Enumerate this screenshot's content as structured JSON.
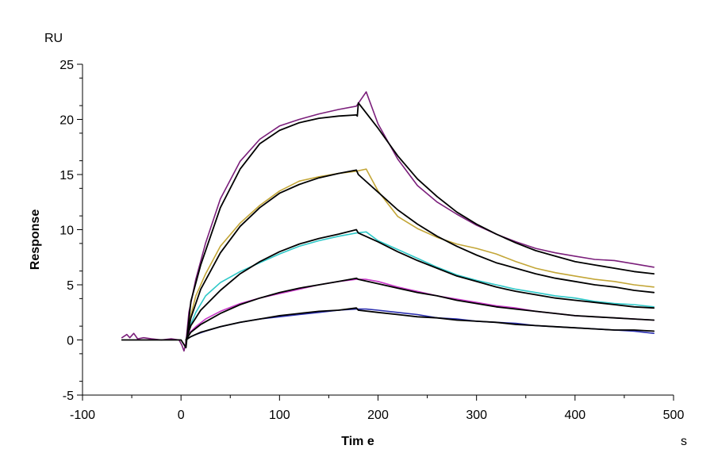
{
  "chart_data": {
    "type": "line",
    "title": "",
    "xlabel": "Tim e",
    "ylabel": "Response",
    "x_unit": "s",
    "y_unit": "RU",
    "xlim": [
      -100,
      500
    ],
    "ylim": [
      -5,
      25
    ],
    "x_ticks": [
      -100,
      0,
      100,
      200,
      300,
      400,
      500
    ],
    "x_tick_labels": [
      "-100",
      "0",
      "100",
      "200",
      "300",
      "400",
      "500"
    ],
    "y_ticks": [
      -5,
      0,
      5,
      10,
      15,
      20,
      25
    ],
    "y_tick_labels": [
      "-5",
      "0",
      "5",
      "10",
      "15",
      "20",
      "25"
    ],
    "grid": false,
    "legend": "none",
    "series": [
      {
        "color": "#7b1f7b",
        "style": "measured",
        "points": [
          [
            -60,
            0.2
          ],
          [
            -55,
            0.5
          ],
          [
            -52,
            0.2
          ],
          [
            -48,
            0.6
          ],
          [
            -44,
            0.1
          ],
          [
            -38,
            0.2
          ],
          [
            -30,
            0.1
          ],
          [
            -20,
            0.0
          ],
          [
            -10,
            0.1
          ],
          [
            -2,
            0.0
          ],
          [
            1,
            -0.5
          ],
          [
            3,
            -1.0
          ],
          [
            5,
            -0.2
          ],
          [
            8,
            2.5
          ],
          [
            15,
            5.5
          ],
          [
            25,
            8.8
          ],
          [
            40,
            12.8
          ],
          [
            60,
            16.2
          ],
          [
            80,
            18.2
          ],
          [
            100,
            19.4
          ],
          [
            120,
            20.0
          ],
          [
            140,
            20.5
          ],
          [
            160,
            20.9
          ],
          [
            178,
            21.2
          ],
          [
            188,
            22.5
          ],
          [
            200,
            19.6
          ],
          [
            220,
            16.4
          ],
          [
            240,
            14.0
          ],
          [
            260,
            12.5
          ],
          [
            280,
            11.4
          ],
          [
            300,
            10.4
          ],
          [
            320,
            9.6
          ],
          [
            340,
            8.9
          ],
          [
            360,
            8.3
          ],
          [
            380,
            7.9
          ],
          [
            400,
            7.6
          ],
          [
            420,
            7.3
          ],
          [
            440,
            7.2
          ],
          [
            460,
            6.9
          ],
          [
            480,
            6.6
          ]
        ]
      },
      {
        "color": "#c3a637",
        "style": "measured",
        "points": [
          [
            8,
            1.5
          ],
          [
            15,
            4.0
          ],
          [
            25,
            6.0
          ],
          [
            40,
            8.5
          ],
          [
            60,
            10.6
          ],
          [
            80,
            12.2
          ],
          [
            100,
            13.5
          ],
          [
            120,
            14.4
          ],
          [
            140,
            14.8
          ],
          [
            160,
            15.1
          ],
          [
            178,
            15.3
          ],
          [
            188,
            15.5
          ],
          [
            200,
            13.5
          ],
          [
            220,
            11.2
          ],
          [
            240,
            10.1
          ],
          [
            260,
            9.3
          ],
          [
            280,
            8.7
          ],
          [
            300,
            8.3
          ],
          [
            320,
            7.8
          ],
          [
            340,
            7.1
          ],
          [
            360,
            6.5
          ],
          [
            380,
            6.1
          ],
          [
            400,
            5.8
          ],
          [
            420,
            5.5
          ],
          [
            440,
            5.3
          ],
          [
            460,
            5.0
          ],
          [
            480,
            4.8
          ]
        ]
      },
      {
        "color": "#2ec8c8",
        "style": "measured",
        "points": [
          [
            8,
            1.0
          ],
          [
            15,
            2.5
          ],
          [
            25,
            4.0
          ],
          [
            40,
            5.2
          ],
          [
            60,
            6.2
          ],
          [
            80,
            7.0
          ],
          [
            100,
            7.8
          ],
          [
            120,
            8.5
          ],
          [
            140,
            9.0
          ],
          [
            160,
            9.4
          ],
          [
            178,
            9.7
          ],
          [
            188,
            9.8
          ],
          [
            200,
            9.0
          ],
          [
            220,
            8.2
          ],
          [
            240,
            7.4
          ],
          [
            260,
            6.6
          ],
          [
            280,
            5.9
          ],
          [
            300,
            5.4
          ],
          [
            320,
            5.0
          ],
          [
            340,
            4.6
          ],
          [
            360,
            4.3
          ],
          [
            380,
            4.0
          ],
          [
            400,
            3.8
          ],
          [
            420,
            3.5
          ],
          [
            440,
            3.3
          ],
          [
            460,
            3.2
          ],
          [
            480,
            3.0
          ]
        ]
      },
      {
        "color": "#c837c8",
        "style": "measured",
        "points": [
          [
            8,
            0.6
          ],
          [
            15,
            1.2
          ],
          [
            25,
            1.9
          ],
          [
            40,
            2.6
          ],
          [
            60,
            3.3
          ],
          [
            80,
            3.8
          ],
          [
            100,
            4.2
          ],
          [
            120,
            4.6
          ],
          [
            140,
            5.0
          ],
          [
            160,
            5.3
          ],
          [
            178,
            5.5
          ],
          [
            188,
            5.5
          ],
          [
            200,
            5.3
          ],
          [
            220,
            4.8
          ],
          [
            240,
            4.4
          ],
          [
            260,
            4.0
          ],
          [
            280,
            3.7
          ],
          [
            300,
            3.4
          ],
          [
            320,
            3.1
          ],
          [
            340,
            2.9
          ],
          [
            360,
            2.6
          ],
          [
            380,
            2.4
          ],
          [
            400,
            2.2
          ],
          [
            420,
            2.1
          ],
          [
            440,
            2.0
          ],
          [
            460,
            1.9
          ],
          [
            480,
            1.8
          ]
        ]
      },
      {
        "color": "#2b2fb0",
        "style": "measured",
        "points": [
          [
            8,
            0.2
          ],
          [
            15,
            0.5
          ],
          [
            25,
            0.8
          ],
          [
            40,
            1.2
          ],
          [
            60,
            1.6
          ],
          [
            80,
            1.9
          ],
          [
            100,
            2.1
          ],
          [
            120,
            2.3
          ],
          [
            140,
            2.5
          ],
          [
            160,
            2.7
          ],
          [
            178,
            2.8
          ],
          [
            188,
            2.8
          ],
          [
            200,
            2.7
          ],
          [
            220,
            2.5
          ],
          [
            240,
            2.3
          ],
          [
            260,
            2.0
          ],
          [
            280,
            1.9
          ],
          [
            300,
            1.7
          ],
          [
            320,
            1.6
          ],
          [
            340,
            1.5
          ],
          [
            360,
            1.3
          ],
          [
            380,
            1.2
          ],
          [
            400,
            1.1
          ],
          [
            420,
            1.0
          ],
          [
            440,
            0.9
          ],
          [
            460,
            0.8
          ],
          [
            480,
            0.6
          ]
        ]
      },
      {
        "color": "#000000",
        "style": "fit",
        "points": [
          [
            -60,
            0.0
          ],
          [
            0,
            0.0
          ],
          [
            5,
            -0.7
          ],
          [
            10,
            3.5
          ],
          [
            20,
            6.8
          ],
          [
            40,
            12.0
          ],
          [
            60,
            15.5
          ],
          [
            80,
            17.8
          ],
          [
            100,
            19.0
          ],
          [
            120,
            19.7
          ],
          [
            140,
            20.1
          ],
          [
            160,
            20.3
          ],
          [
            178,
            20.4
          ],
          [
            179,
            20.3
          ],
          [
            180,
            21.5
          ],
          [
            200,
            19.2
          ],
          [
            220,
            16.7
          ],
          [
            240,
            14.6
          ],
          [
            260,
            13.0
          ],
          [
            280,
            11.6
          ],
          [
            300,
            10.5
          ],
          [
            320,
            9.6
          ],
          [
            340,
            8.8
          ],
          [
            360,
            8.1
          ],
          [
            380,
            7.6
          ],
          [
            400,
            7.1
          ],
          [
            420,
            6.8
          ],
          [
            440,
            6.5
          ],
          [
            460,
            6.2
          ],
          [
            480,
            6.0
          ]
        ]
      },
      {
        "color": "#000000",
        "style": "fit",
        "points": [
          [
            5,
            -0.2
          ],
          [
            10,
            2.0
          ],
          [
            20,
            4.6
          ],
          [
            40,
            7.9
          ],
          [
            60,
            10.3
          ],
          [
            80,
            12.0
          ],
          [
            100,
            13.3
          ],
          [
            120,
            14.1
          ],
          [
            140,
            14.7
          ],
          [
            160,
            15.1
          ],
          [
            178,
            15.4
          ],
          [
            180,
            15.0
          ],
          [
            200,
            13.4
          ],
          [
            220,
            11.8
          ],
          [
            240,
            10.5
          ],
          [
            260,
            9.4
          ],
          [
            280,
            8.5
          ],
          [
            300,
            7.7
          ],
          [
            320,
            7.0
          ],
          [
            340,
            6.5
          ],
          [
            360,
            6.0
          ],
          [
            380,
            5.6
          ],
          [
            400,
            5.3
          ],
          [
            420,
            5.0
          ],
          [
            440,
            4.8
          ],
          [
            460,
            4.5
          ],
          [
            480,
            4.3
          ]
        ]
      },
      {
        "color": "#000000",
        "style": "fit",
        "points": [
          [
            5,
            0.0
          ],
          [
            10,
            1.3
          ],
          [
            20,
            2.7
          ],
          [
            40,
            4.5
          ],
          [
            60,
            6.0
          ],
          [
            80,
            7.1
          ],
          [
            100,
            8.0
          ],
          [
            120,
            8.7
          ],
          [
            140,
            9.2
          ],
          [
            160,
            9.6
          ],
          [
            178,
            10.0
          ],
          [
            180,
            9.7
          ],
          [
            200,
            8.9
          ],
          [
            220,
            8.0
          ],
          [
            240,
            7.2
          ],
          [
            260,
            6.5
          ],
          [
            280,
            5.8
          ],
          [
            300,
            5.3
          ],
          [
            320,
            4.8
          ],
          [
            340,
            4.4
          ],
          [
            360,
            4.1
          ],
          [
            380,
            3.8
          ],
          [
            400,
            3.6
          ],
          [
            420,
            3.4
          ],
          [
            440,
            3.2
          ],
          [
            460,
            3.0
          ],
          [
            480,
            2.9
          ]
        ]
      },
      {
        "color": "#000000",
        "style": "fit",
        "points": [
          [
            5,
            0.0
          ],
          [
            10,
            0.7
          ],
          [
            20,
            1.4
          ],
          [
            40,
            2.4
          ],
          [
            60,
            3.2
          ],
          [
            80,
            3.8
          ],
          [
            100,
            4.3
          ],
          [
            120,
            4.7
          ],
          [
            140,
            5.0
          ],
          [
            160,
            5.3
          ],
          [
            178,
            5.6
          ],
          [
            180,
            5.5
          ],
          [
            200,
            5.1
          ],
          [
            220,
            4.7
          ],
          [
            240,
            4.3
          ],
          [
            260,
            4.0
          ],
          [
            280,
            3.6
          ],
          [
            300,
            3.3
          ],
          [
            320,
            3.0
          ],
          [
            340,
            2.8
          ],
          [
            360,
            2.6
          ],
          [
            380,
            2.4
          ],
          [
            400,
            2.2
          ],
          [
            420,
            2.1
          ],
          [
            440,
            2.0
          ],
          [
            460,
            1.9
          ],
          [
            480,
            1.8
          ]
        ]
      },
      {
        "color": "#000000",
        "style": "fit",
        "points": [
          [
            5,
            0.0
          ],
          [
            10,
            0.3
          ],
          [
            20,
            0.7
          ],
          [
            40,
            1.2
          ],
          [
            60,
            1.6
          ],
          [
            80,
            1.9
          ],
          [
            100,
            2.2
          ],
          [
            120,
            2.4
          ],
          [
            140,
            2.6
          ],
          [
            160,
            2.7
          ],
          [
            178,
            2.9
          ],
          [
            180,
            2.7
          ],
          [
            200,
            2.5
          ],
          [
            220,
            2.3
          ],
          [
            240,
            2.1
          ],
          [
            260,
            2.0
          ],
          [
            280,
            1.8
          ],
          [
            300,
            1.7
          ],
          [
            320,
            1.6
          ],
          [
            340,
            1.4
          ],
          [
            360,
            1.3
          ],
          [
            380,
            1.2
          ],
          [
            400,
            1.1
          ],
          [
            420,
            1.0
          ],
          [
            440,
            0.9
          ],
          [
            460,
            0.9
          ],
          [
            480,
            0.8
          ]
        ]
      }
    ]
  }
}
